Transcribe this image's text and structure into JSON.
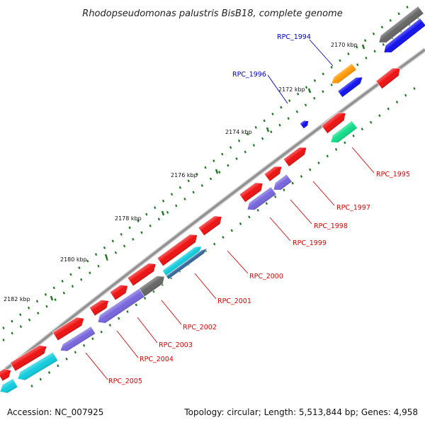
{
  "title": "Rhodopseudomonas palustris BisB18, complete genome",
  "footer": {
    "accession": "Accession: NC_007925",
    "summary": "Topology: circular; Length: 5,513,844 bp; Genes: 4,958"
  },
  "colors": {
    "backbone": "#8f8f8f",
    "tick": "#1e7a1e",
    "label_red": "#dd0000",
    "label_blue": "#0000cc",
    "red_gene": "#ee1111",
    "blue_gene": "#1111ee",
    "gray_gene": "#666666",
    "cyan_gene": "#11ccdd",
    "purple_gene": "#7766dd",
    "orange_gene": "#ff9900",
    "green_gene": "#11dd88"
  },
  "ticks": [
    {
      "label": "2170 kbp"
    },
    {
      "label": "2172 kbp"
    },
    {
      "label": "2174 kbp"
    },
    {
      "label": "2176 kbp"
    },
    {
      "label": "2178 kbp"
    },
    {
      "label": "2180 kbp"
    },
    {
      "label": "2182 kbp"
    }
  ],
  "gene_labels": [
    {
      "text": "RPC_1994",
      "color": "blue"
    },
    {
      "text": "RPC_1996",
      "color": "blue"
    },
    {
      "text": "RPC_1995",
      "color": "red"
    },
    {
      "text": "RPC_1997",
      "color": "red"
    },
    {
      "text": "RPC_1998",
      "color": "red"
    },
    {
      "text": "RPC_1999",
      "color": "red"
    },
    {
      "text": "RPC_2000",
      "color": "red"
    },
    {
      "text": "RPC_2001",
      "color": "red"
    },
    {
      "text": "RPC_2002",
      "color": "red"
    },
    {
      "text": "RPC_2003",
      "color": "red"
    },
    {
      "text": "RPC_2004",
      "color": "red"
    },
    {
      "text": "RPC_2005",
      "color": "red"
    }
  ]
}
